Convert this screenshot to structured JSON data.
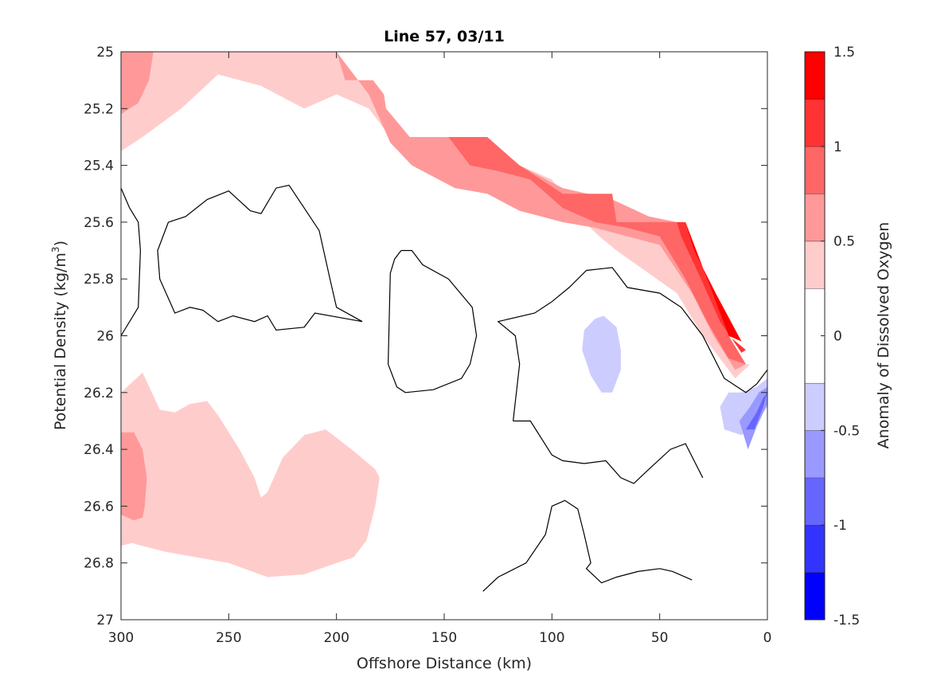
{
  "chart_data": {
    "type": "contour",
    "title": "Line 57, 03/11",
    "xlabel": "Offshore Distance (km)",
    "ylabel_main": "Potential Density (kg/m",
    "ylabel_sup": "3",
    "ylabel_end": ")",
    "x_reversed": true,
    "xlim": [
      300,
      0
    ],
    "ylim": [
      25,
      27
    ],
    "y_reversed": true,
    "xticks": [
      300,
      250,
      200,
      150,
      100,
      50,
      0
    ],
    "yticks": [
      25,
      25.2,
      25.4,
      25.6,
      25.8,
      26,
      26.2,
      26.4,
      26.6,
      26.8,
      27
    ],
    "ytick_labels": [
      "25",
      "25.2",
      "25.4",
      "25.6",
      "25.8",
      "26",
      "26.2",
      "26.4",
      "26.6",
      "26.8",
      "27"
    ],
    "colorbar": {
      "label": "Anomaly of Dissolved Oxygen",
      "range": [
        -1.5,
        1.5
      ],
      "ticks": [
        1.5,
        1,
        0.5,
        0,
        -0.5,
        -1,
        -1.5
      ],
      "tick_labels": [
        "1.5",
        "1",
        "0.5",
        "0",
        "-0.5",
        "-1",
        "-1.5"
      ],
      "levels": [
        -1.5,
        -1.25,
        -1.0,
        -0.75,
        -0.5,
        -0.25,
        0.25,
        0.5,
        0.75,
        1.0,
        1.25,
        1.5
      ],
      "colors": [
        "#0000ff",
        "#3333ff",
        "#6666ff",
        "#9999ff",
        "#ccccff",
        "#ffffff",
        "#ffcccc",
        "#ff9999",
        "#ff6666",
        "#ff3333",
        "#ff0000"
      ]
    },
    "filled_regions": [
      {
        "name": "band-0.25-0.5-upper",
        "color": "#ffcccc",
        "points": [
          [
            300,
            25
          ],
          [
            205,
            25
          ],
          [
            200,
            25
          ],
          [
            196,
            25.1
          ],
          [
            183,
            25.1
          ],
          [
            178,
            25.15
          ],
          [
            177,
            25.2
          ],
          [
            166,
            25.3
          ],
          [
            160,
            25.3
          ],
          [
            148,
            25.3
          ],
          [
            130,
            25.3
          ],
          [
            125,
            25.4
          ],
          [
            115,
            25.4
          ],
          [
            100,
            25.45
          ],
          [
            95,
            25.5
          ],
          [
            72,
            25.55
          ],
          [
            55,
            25.6
          ],
          [
            38,
            25.6
          ],
          [
            33,
            25.7
          ],
          [
            18,
            26.0
          ],
          [
            10,
            26.1
          ],
          [
            8,
            26.1
          ],
          [
            15,
            26.15
          ],
          [
            30,
            26.0
          ],
          [
            42,
            25.85
          ],
          [
            70,
            25.7
          ],
          [
            78,
            25.65
          ],
          [
            85,
            25.6
          ],
          [
            95,
            25.6
          ],
          [
            110,
            25.55
          ],
          [
            125,
            25.5
          ],
          [
            145,
            25.42
          ],
          [
            165,
            25.38
          ],
          [
            175,
            25.3
          ],
          [
            185,
            25.2
          ],
          [
            200,
            25.15
          ],
          [
            215,
            25.2
          ],
          [
            235,
            25.12
          ],
          [
            255,
            25.08
          ],
          [
            272,
            25.2
          ],
          [
            290,
            25.3
          ],
          [
            300,
            25.35
          ]
        ]
      },
      {
        "name": "band-0.5-0.75-topleft",
        "color": "#ff9999",
        "points": [
          [
            300,
            25
          ],
          [
            285,
            25
          ],
          [
            287,
            25.1
          ],
          [
            292,
            25.18
          ],
          [
            300,
            25.22
          ]
        ]
      },
      {
        "name": "band-0.5-0.75-upper",
        "color": "#ff9999",
        "points": [
          [
            200,
            25
          ],
          [
            196,
            25.1
          ],
          [
            183,
            25.1
          ],
          [
            178,
            25.15
          ],
          [
            177,
            25.2
          ],
          [
            166,
            25.3
          ],
          [
            148,
            25.3
          ],
          [
            130,
            25.3
          ],
          [
            124,
            25.35
          ],
          [
            115,
            25.4
          ],
          [
            95,
            25.48
          ],
          [
            72,
            25.52
          ],
          [
            55,
            25.58
          ],
          [
            42,
            25.6
          ],
          [
            33,
            25.7
          ],
          [
            18,
            26.0
          ],
          [
            10,
            26.1
          ],
          [
            15,
            26.12
          ],
          [
            25,
            26.0
          ],
          [
            35,
            25.85
          ],
          [
            50,
            25.68
          ],
          [
            65,
            25.65
          ],
          [
            80,
            25.62
          ],
          [
            95,
            25.6
          ],
          [
            115,
            25.56
          ],
          [
            130,
            25.5
          ],
          [
            145,
            25.48
          ],
          [
            165,
            25.4
          ],
          [
            175,
            25.32
          ],
          [
            185,
            25.15
          ],
          [
            195,
            25.05
          ]
        ]
      },
      {
        "name": "band-0.75-1.0-upper",
        "color": "#ff6666",
        "points": [
          [
            148,
            25.3
          ],
          [
            130,
            25.3
          ],
          [
            115,
            25.4
          ],
          [
            95,
            25.5
          ],
          [
            72,
            25.5
          ],
          [
            70,
            25.6
          ],
          [
            42,
            25.6
          ],
          [
            33,
            25.7
          ],
          [
            18,
            26.0
          ],
          [
            10,
            26.1
          ],
          [
            18,
            26.08
          ],
          [
            28,
            25.95
          ],
          [
            38,
            25.8
          ],
          [
            50,
            25.65
          ],
          [
            65,
            25.62
          ],
          [
            80,
            25.6
          ],
          [
            95,
            25.55
          ],
          [
            110,
            25.45
          ],
          [
            125,
            25.42
          ],
          [
            138,
            25.4
          ]
        ]
      },
      {
        "name": "band-1.0-1.25-upper",
        "color": "#ff3333",
        "points": [
          [
            42,
            25.6
          ],
          [
            38,
            25.6
          ],
          [
            33,
            25.7
          ],
          [
            18,
            26.0
          ],
          [
            10,
            26.05
          ],
          [
            12,
            26.06
          ],
          [
            22,
            25.95
          ],
          [
            32,
            25.78
          ],
          [
            40,
            25.65
          ]
        ]
      },
      {
        "name": "band-1.25-1.5-upper",
        "color": "#ff0000",
        "points": [
          [
            38,
            25.6
          ],
          [
            33,
            25.7
          ],
          [
            18,
            26.0
          ],
          [
            12,
            26.02
          ],
          [
            24,
            25.85
          ],
          [
            34,
            25.7
          ]
        ]
      },
      {
        "name": "band-0.25-0.5-lower",
        "color": "#ffcccc",
        "points": [
          [
            300,
            26.2
          ],
          [
            290,
            26.13
          ],
          [
            282,
            26.26
          ],
          [
            275,
            26.27
          ],
          [
            268,
            26.24
          ],
          [
            260,
            26.23
          ],
          [
            255,
            26.28
          ],
          [
            245,
            26.4
          ],
          [
            238,
            26.5
          ],
          [
            235,
            26.57
          ],
          [
            232,
            26.55
          ],
          [
            225,
            26.43
          ],
          [
            215,
            26.35
          ],
          [
            205,
            26.33
          ],
          [
            193,
            26.4
          ],
          [
            182,
            26.47
          ],
          [
            180,
            26.5
          ],
          [
            182,
            26.6
          ],
          [
            186,
            26.72
          ],
          [
            192,
            26.78
          ],
          [
            200,
            26.8
          ],
          [
            215,
            26.84
          ],
          [
            232,
            26.85
          ],
          [
            250,
            26.8
          ],
          [
            265,
            26.78
          ],
          [
            280,
            26.76
          ],
          [
            295,
            26.73
          ],
          [
            300,
            26.74
          ]
        ]
      },
      {
        "name": "band-0.5-0.75-lower",
        "color": "#ff9999",
        "points": [
          [
            300,
            26.34
          ],
          [
            294,
            26.34
          ],
          [
            290,
            26.4
          ],
          [
            288,
            26.5
          ],
          [
            289,
            26.6
          ],
          [
            290,
            26.64
          ],
          [
            294,
            26.65
          ],
          [
            300,
            26.63
          ]
        ]
      },
      {
        "name": "band-neg-0.25-mid",
        "color": "#ccccff",
        "points": [
          [
            76,
            25.93
          ],
          [
            70,
            25.97
          ],
          [
            68,
            26.05
          ],
          [
            68,
            26.12
          ],
          [
            72,
            26.2
          ],
          [
            77,
            26.2
          ],
          [
            82,
            26.14
          ],
          [
            86,
            26.05
          ],
          [
            85,
            25.98
          ],
          [
            80,
            25.94
          ]
        ]
      },
      {
        "name": "band-neg-0.25-right",
        "color": "#ccccff",
        "points": [
          [
            20,
            26.33
          ],
          [
            22,
            26.25
          ],
          [
            18,
            26.2
          ],
          [
            12,
            26.2
          ],
          [
            5,
            26.18
          ],
          [
            0,
            26.15
          ],
          [
            0,
            26.25
          ],
          [
            5,
            26.3
          ],
          [
            12,
            26.35
          ]
        ]
      },
      {
        "name": "band-neg-0.5-right",
        "color": "#9999ff",
        "points": [
          [
            13,
            26.3
          ],
          [
            8,
            26.25
          ],
          [
            4,
            26.2
          ],
          [
            0,
            26.18
          ],
          [
            0,
            26.24
          ],
          [
            5,
            26.32
          ],
          [
            9,
            26.4
          ]
        ]
      },
      {
        "name": "band-neg-0.75-right",
        "color": "#6666ff",
        "points": [
          [
            10,
            26.33
          ],
          [
            5,
            26.27
          ],
          [
            2,
            26.22
          ],
          [
            0,
            26.2
          ],
          [
            2,
            26.25
          ],
          [
            6,
            26.33
          ]
        ]
      }
    ],
    "contour_lines": [
      [
        [
          300,
          25.48
        ],
        [
          296,
          25.55
        ],
        [
          292,
          25.6
        ],
        [
          291,
          25.7
        ],
        [
          292,
          25.9
        ],
        [
          300,
          26.0
        ]
      ],
      [
        [
          278,
          25.6
        ],
        [
          270,
          25.58
        ],
        [
          260,
          25.52
        ],
        [
          250,
          25.49
        ],
        [
          240,
          25.56
        ],
        [
          235,
          25.57
        ],
        [
          228,
          25.48
        ],
        [
          222,
          25.47
        ],
        [
          215,
          25.55
        ],
        [
          208,
          25.63
        ],
        [
          203,
          25.8
        ],
        [
          200,
          25.9
        ],
        [
          188,
          25.95
        ],
        [
          210,
          25.92
        ],
        [
          215,
          25.97
        ],
        [
          228,
          25.98
        ],
        [
          232,
          25.93
        ],
        [
          238,
          25.95
        ],
        [
          248,
          25.93
        ],
        [
          255,
          25.95
        ],
        [
          262,
          25.91
        ],
        [
          268,
          25.9
        ],
        [
          275,
          25.92
        ],
        [
          282,
          25.8
        ],
        [
          283,
          25.7
        ],
        [
          278,
          25.6
        ]
      ],
      [
        [
          170,
          25.7
        ],
        [
          173,
          25.73
        ],
        [
          175,
          25.78
        ],
        [
          176,
          26.1
        ],
        [
          172,
          26.18
        ],
        [
          168,
          26.2
        ],
        [
          155,
          26.19
        ],
        [
          142,
          26.15
        ],
        [
          138,
          26.1
        ],
        [
          135,
          26.0
        ],
        [
          137,
          25.9
        ],
        [
          148,
          25.8
        ],
        [
          160,
          25.75
        ],
        [
          165,
          25.7
        ],
        [
          170,
          25.7
        ]
      ],
      [
        [
          118,
          26.3
        ],
        [
          115,
          26.1
        ],
        [
          117,
          26.0
        ],
        [
          125,
          25.95
        ],
        [
          108,
          25.92
        ],
        [
          100,
          25.88
        ],
        [
          92,
          25.83
        ],
        [
          84,
          25.77
        ],
        [
          72,
          25.76
        ],
        [
          65,
          25.83
        ],
        [
          50,
          25.85
        ],
        [
          40,
          25.9
        ],
        [
          30,
          26.0
        ],
        [
          20,
          26.15
        ],
        [
          10,
          26.2
        ],
        [
          5,
          26.17
        ],
        [
          0,
          26.12
        ]
      ],
      [
        [
          118,
          26.3
        ],
        [
          110,
          26.3
        ],
        [
          100,
          26.42
        ],
        [
          95,
          26.44
        ],
        [
          85,
          26.45
        ],
        [
          75,
          26.44
        ],
        [
          68,
          26.5
        ],
        [
          62,
          26.52
        ],
        [
          55,
          26.47
        ],
        [
          45,
          26.4
        ],
        [
          38,
          26.38
        ],
        [
          30,
          26.5
        ]
      ],
      [
        [
          132,
          26.9
        ],
        [
          125,
          26.85
        ],
        [
          112,
          26.8
        ],
        [
          103,
          26.7
        ],
        [
          100,
          26.6
        ],
        [
          94,
          26.58
        ],
        [
          88,
          26.61
        ],
        [
          85,
          26.7
        ],
        [
          82,
          26.8
        ],
        [
          84,
          26.82
        ],
        [
          77,
          26.87
        ],
        [
          70,
          26.85
        ],
        [
          60,
          26.83
        ],
        [
          50,
          26.82
        ],
        [
          44,
          26.83
        ],
        [
          35,
          26.86
        ]
      ]
    ]
  }
}
